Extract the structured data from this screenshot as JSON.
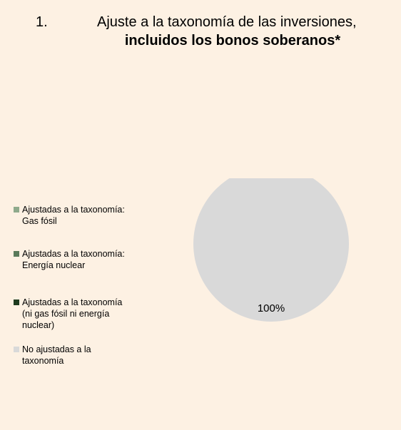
{
  "title": {
    "number": "1.",
    "line1": "Ajuste a la taxonomía de las inversiones,",
    "line2": "incluidos los bonos soberanos*"
  },
  "chart_data": {
    "type": "pie",
    "slices": [
      {
        "label": "Ajustadas a la taxonomía:\nGas fósil",
        "value": 0,
        "color": "#8faa8c"
      },
      {
        "label": "Ajustadas a la taxonomía:\nEnergía nuclear",
        "value": 0,
        "color": "#5a7a5a"
      },
      {
        "label": "Ajustadas a la taxonomía\n(ni gas fósil ni energía\nnuclear)",
        "value": 0,
        "color": "#1e3b1e"
      },
      {
        "label": "No ajustadas a la\ntaxonomía",
        "value": 100,
        "color": "#d9d9d9"
      }
    ],
    "data_labels": [
      "100%"
    ],
    "legend_position": "left"
  }
}
